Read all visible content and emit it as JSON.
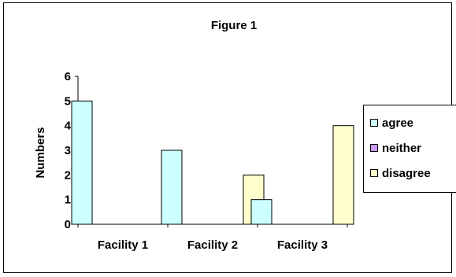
{
  "chart_data": {
    "type": "bar",
    "title": "Figure 1",
    "xlabel": "",
    "ylabel": "Numbers",
    "ylim": [
      0,
      6
    ],
    "yticks": [
      "0",
      "1",
      "2",
      "3",
      "4",
      "5",
      "6"
    ],
    "categories": [
      "Facility 1",
      "Facility 2",
      "Facility 3"
    ],
    "series": [
      {
        "name": "agree",
        "values": [
          5,
          3,
          1
        ],
        "color": "#ccffff"
      },
      {
        "name": "neither",
        "values": [
          0,
          0,
          0
        ],
        "color": "#cc99ff"
      },
      {
        "name": "disagree",
        "values": [
          0,
          2,
          4
        ],
        "color": "#ffffcc"
      }
    ],
    "grid": false,
    "legend_position": "right"
  }
}
